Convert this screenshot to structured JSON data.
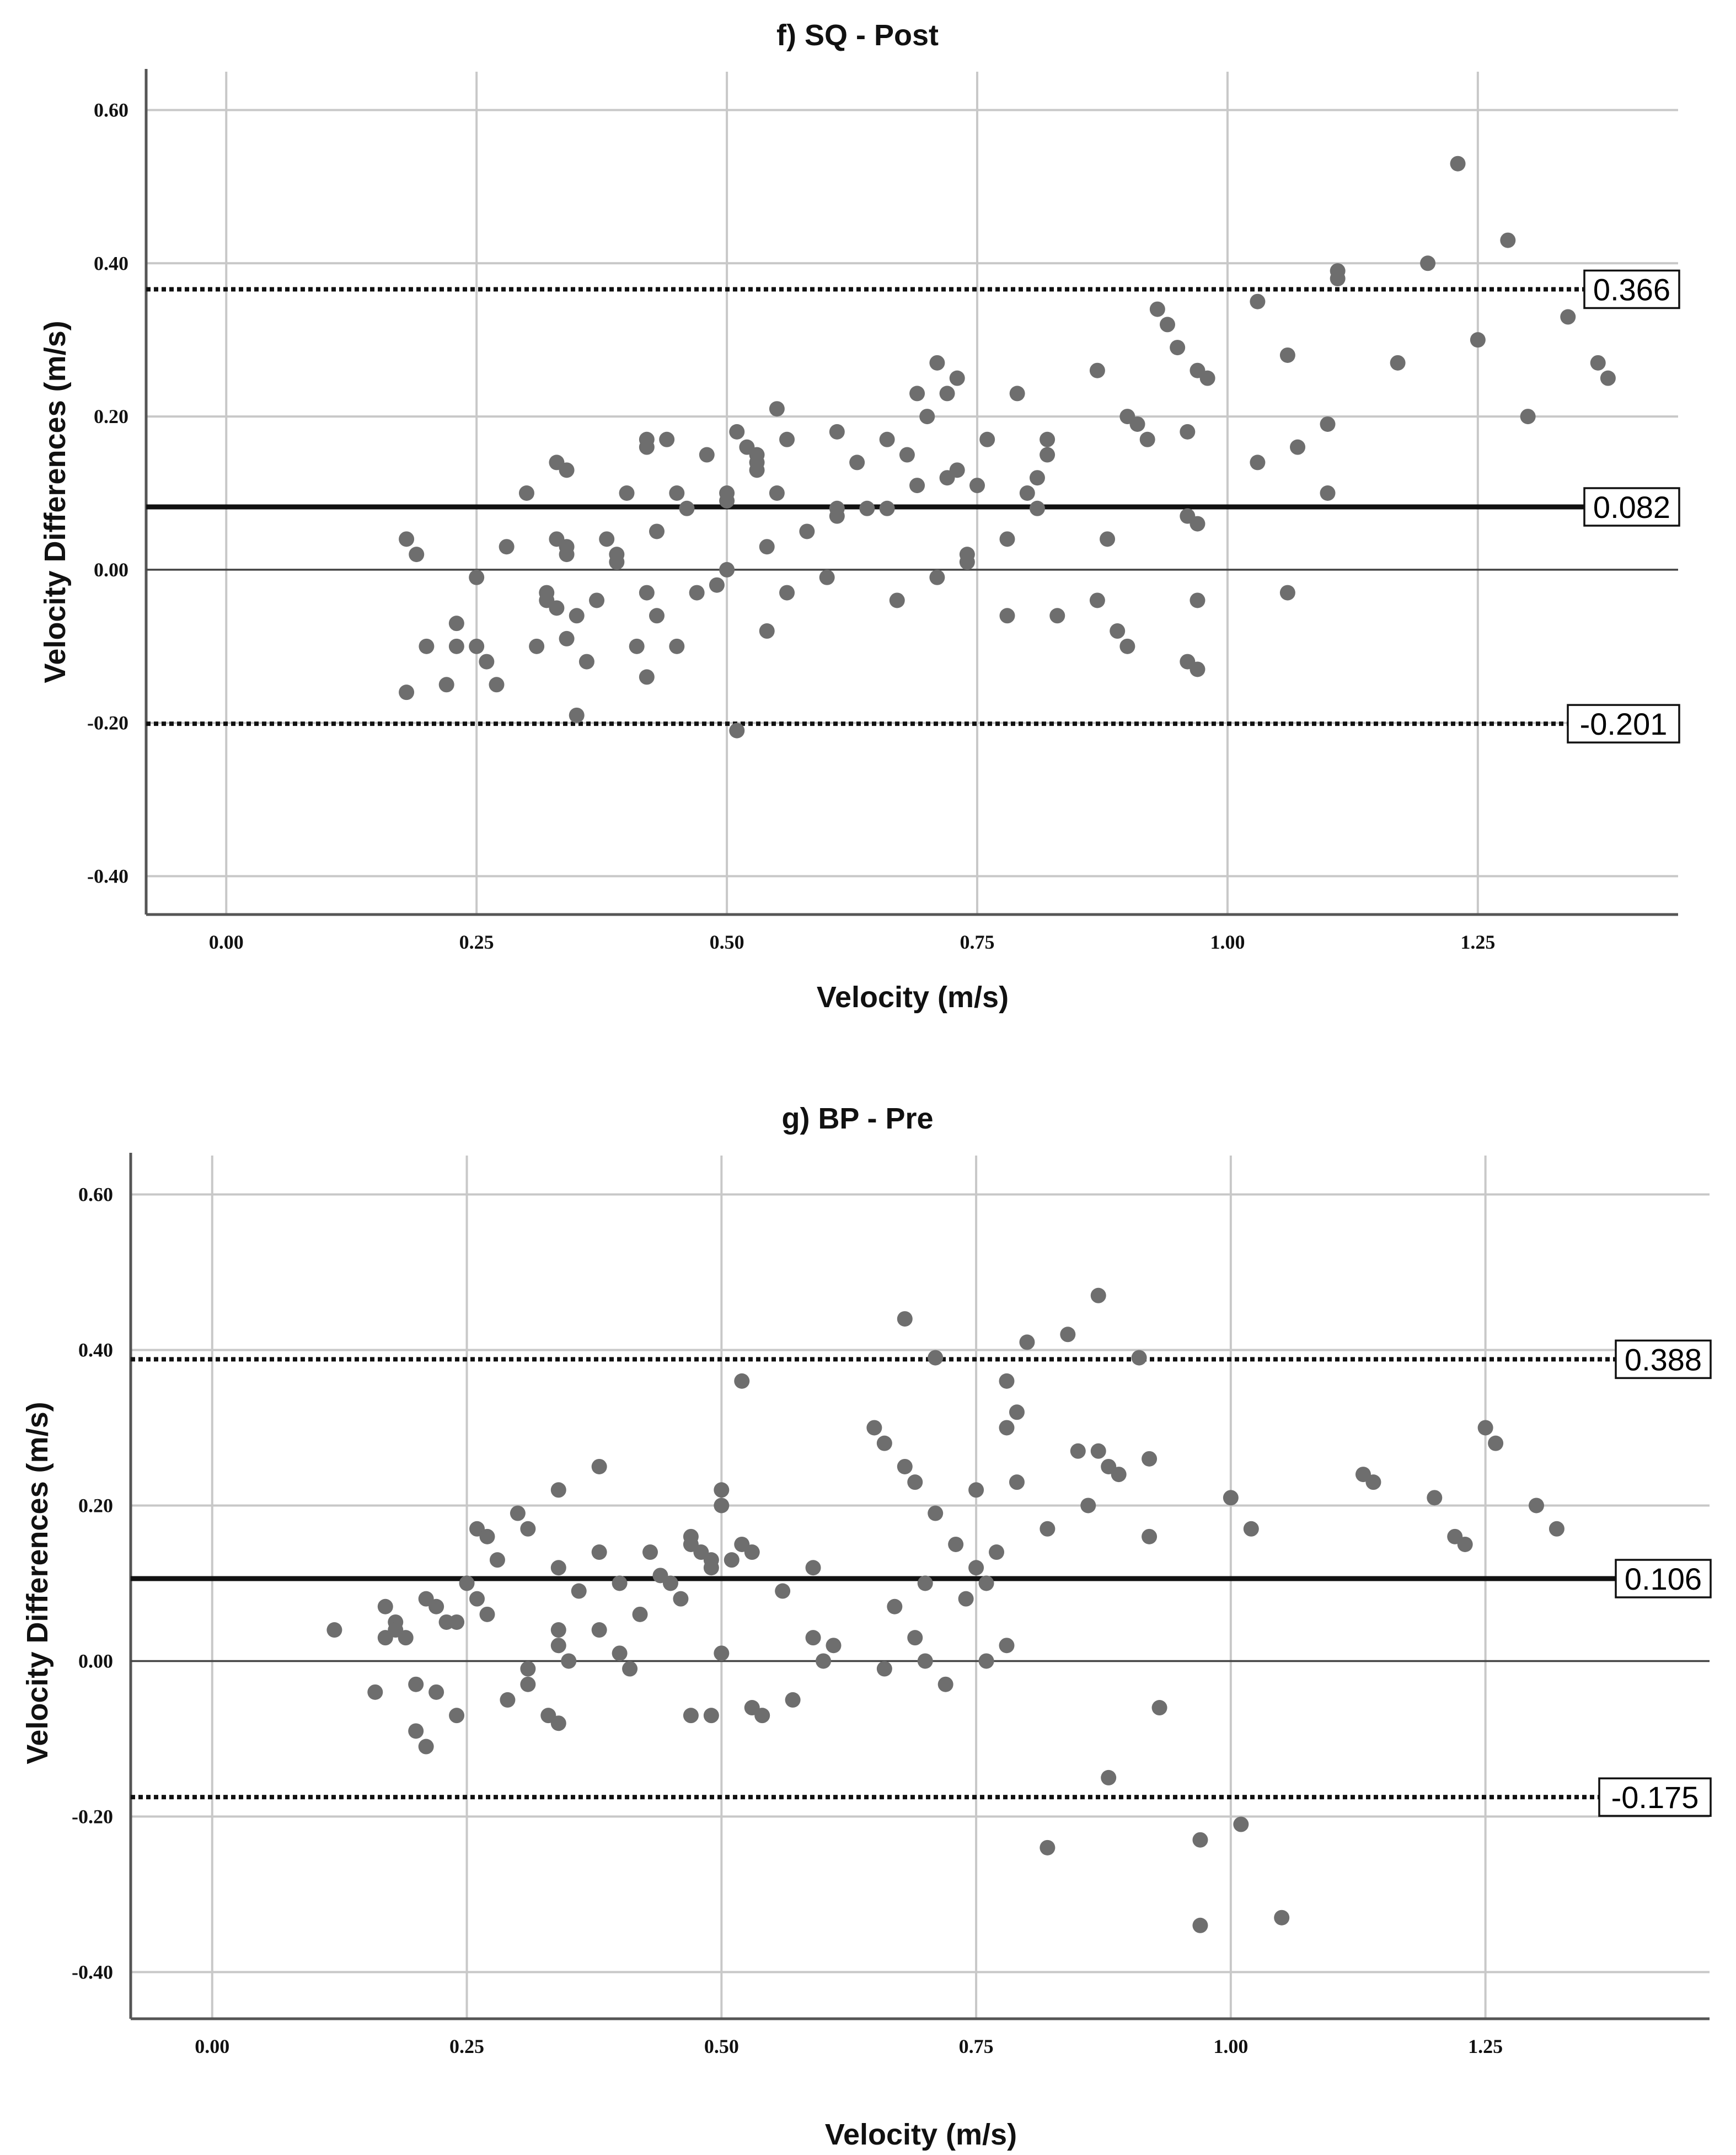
{
  "chart_data": [
    {
      "type": "scatter",
      "title": "f) SQ - Post",
      "xlabel": "Velocity (m/s)",
      "ylabel": "Velocity Differences (m/s)",
      "xlim": [
        -0.08,
        1.45
      ],
      "ylim": [
        -0.45,
        0.65
      ],
      "xticks": [
        0.0,
        0.25,
        0.5,
        0.75,
        1.0,
        1.25
      ],
      "xtick_labels": [
        "0.00",
        "0.25",
        "0.50",
        "0.75",
        "1.00",
        "1.25"
      ],
      "yticks": [
        -0.4,
        -0.2,
        0.0,
        0.2,
        0.4,
        0.6
      ],
      "ytick_labels": [
        "-0.40",
        "-0.20",
        "0.00",
        "0.20",
        "0.40",
        "0.60"
      ],
      "grid": true,
      "reference_lines": [
        {
          "kind": "upper-limit",
          "value": 0.366,
          "label": "0.366"
        },
        {
          "kind": "mean",
          "value": 0.082,
          "label": "0.082"
        },
        {
          "kind": "lower-limit",
          "value": -0.201,
          "label": "-0.201"
        }
      ],
      "points": [
        [
          0.18,
          -0.16
        ],
        [
          0.18,
          0.04
        ],
        [
          0.19,
          0.02
        ],
        [
          0.2,
          -0.1
        ],
        [
          0.22,
          -0.15
        ],
        [
          0.23,
          -0.1
        ],
        [
          0.23,
          -0.07
        ],
        [
          0.25,
          -0.1
        ],
        [
          0.25,
          -0.01
        ],
        [
          0.26,
          -0.12
        ],
        [
          0.27,
          -0.15
        ],
        [
          0.28,
          0.03
        ],
        [
          0.3,
          0.1
        ],
        [
          0.31,
          -0.1
        ],
        [
          0.32,
          -0.03
        ],
        [
          0.32,
          -0.04
        ],
        [
          0.33,
          -0.05
        ],
        [
          0.33,
          0.14
        ],
        [
          0.33,
          0.04
        ],
        [
          0.34,
          0.13
        ],
        [
          0.34,
          0.03
        ],
        [
          0.34,
          -0.09
        ],
        [
          0.34,
          0.02
        ],
        [
          0.35,
          -0.06
        ],
        [
          0.35,
          -0.19
        ],
        [
          0.36,
          -0.12
        ],
        [
          0.37,
          -0.04
        ],
        [
          0.38,
          0.04
        ],
        [
          0.39,
          0.02
        ],
        [
          0.39,
          0.01
        ],
        [
          0.4,
          0.1
        ],
        [
          0.41,
          -0.1
        ],
        [
          0.42,
          0.17
        ],
        [
          0.42,
          0.16
        ],
        [
          0.42,
          -0.03
        ],
        [
          0.42,
          -0.14
        ],
        [
          0.43,
          0.05
        ],
        [
          0.43,
          -0.06
        ],
        [
          0.44,
          0.17
        ],
        [
          0.45,
          0.1
        ],
        [
          0.45,
          -0.1
        ],
        [
          0.46,
          0.08
        ],
        [
          0.47,
          -0.03
        ],
        [
          0.48,
          0.15
        ],
        [
          0.49,
          -0.02
        ],
        [
          0.5,
          0.1
        ],
        [
          0.5,
          0.0
        ],
        [
          0.5,
          0.09
        ],
        [
          0.51,
          -0.21
        ],
        [
          0.51,
          0.18
        ],
        [
          0.52,
          0.16
        ],
        [
          0.53,
          0.15
        ],
        [
          0.53,
          0.14
        ],
        [
          0.53,
          0.13
        ],
        [
          0.54,
          0.03
        ],
        [
          0.54,
          -0.08
        ],
        [
          0.55,
          0.21
        ],
        [
          0.55,
          0.1
        ],
        [
          0.56,
          0.17
        ],
        [
          0.56,
          -0.03
        ],
        [
          0.58,
          0.05
        ],
        [
          0.6,
          -0.01
        ],
        [
          0.61,
          0.18
        ],
        [
          0.61,
          0.08
        ],
        [
          0.61,
          0.07
        ],
        [
          0.63,
          0.14
        ],
        [
          0.64,
          0.08
        ],
        [
          0.66,
          0.08
        ],
        [
          0.66,
          0.17
        ],
        [
          0.67,
          -0.04
        ],
        [
          0.68,
          0.15
        ],
        [
          0.69,
          0.23
        ],
        [
          0.69,
          0.11
        ],
        [
          0.7,
          0.2
        ],
        [
          0.71,
          -0.01
        ],
        [
          0.71,
          0.27
        ],
        [
          0.72,
          0.23
        ],
        [
          0.72,
          0.12
        ],
        [
          0.73,
          0.25
        ],
        [
          0.73,
          0.13
        ],
        [
          0.74,
          0.02
        ],
        [
          0.74,
          0.01
        ],
        [
          0.75,
          0.11
        ],
        [
          0.76,
          0.17
        ],
        [
          0.78,
          0.04
        ],
        [
          0.78,
          -0.06
        ],
        [
          0.79,
          0.23
        ],
        [
          0.8,
          0.1
        ],
        [
          0.81,
          0.12
        ],
        [
          0.81,
          0.08
        ],
        [
          0.82,
          0.17
        ],
        [
          0.82,
          0.15
        ],
        [
          0.83,
          -0.06
        ],
        [
          0.87,
          0.26
        ],
        [
          0.87,
          -0.04
        ],
        [
          0.88,
          0.04
        ],
        [
          0.89,
          -0.08
        ],
        [
          0.9,
          0.2
        ],
        [
          0.9,
          -0.1
        ],
        [
          0.91,
          0.19
        ],
        [
          0.92,
          0.17
        ],
        [
          0.93,
          0.34
        ],
        [
          0.94,
          0.32
        ],
        [
          0.95,
          0.29
        ],
        [
          0.96,
          0.18
        ],
        [
          0.96,
          -0.12
        ],
        [
          0.96,
          0.07
        ],
        [
          0.97,
          0.06
        ],
        [
          0.97,
          -0.13
        ],
        [
          0.97,
          0.26
        ],
        [
          0.97,
          -0.04
        ],
        [
          0.98,
          0.25
        ],
        [
          1.03,
          0.35
        ],
        [
          1.03,
          0.14
        ],
        [
          1.06,
          0.28
        ],
        [
          1.06,
          -0.03
        ],
        [
          1.07,
          0.16
        ],
        [
          1.1,
          0.1
        ],
        [
          1.1,
          0.19
        ],
        [
          1.11,
          0.39
        ],
        [
          1.11,
          0.38
        ],
        [
          1.17,
          0.27
        ],
        [
          1.2,
          0.4
        ],
        [
          1.23,
          0.53
        ],
        [
          1.25,
          0.3
        ],
        [
          1.28,
          0.43
        ],
        [
          1.3,
          0.2
        ],
        [
          1.34,
          0.33
        ],
        [
          1.37,
          0.27
        ],
        [
          1.38,
          0.25
        ]
      ]
    },
    {
      "type": "scatter",
      "title": "g) BP - Pre",
      "xlabel": "Velocity (m/s)",
      "ylabel": "Velocity Differences (m/s)",
      "xlim": [
        -0.08,
        1.47
      ],
      "ylim": [
        -0.46,
        0.65
      ],
      "xticks": [
        0.0,
        0.25,
        0.5,
        0.75,
        1.0,
        1.25
      ],
      "xtick_labels": [
        "0.00",
        "0.25",
        "0.50",
        "0.75",
        "1.00",
        "1.25"
      ],
      "yticks": [
        -0.4,
        -0.2,
        0.0,
        0.2,
        0.4,
        0.6
      ],
      "ytick_labels": [
        "-0.40",
        "-0.20",
        "0.00",
        "0.20",
        "0.40",
        "0.60"
      ],
      "grid": true,
      "reference_lines": [
        {
          "kind": "upper-limit",
          "value": 0.388,
          "label": "0.388"
        },
        {
          "kind": "mean",
          "value": 0.106,
          "label": "0.106"
        },
        {
          "kind": "lower-limit",
          "value": -0.175,
          "label": "-0.175"
        }
      ],
      "points": [
        [
          0.12,
          0.04
        ],
        [
          0.16,
          -0.04
        ],
        [
          0.17,
          0.07
        ],
        [
          0.17,
          0.03
        ],
        [
          0.18,
          0.05
        ],
        [
          0.18,
          0.04
        ],
        [
          0.19,
          0.03
        ],
        [
          0.2,
          -0.03
        ],
        [
          0.2,
          -0.09
        ],
        [
          0.21,
          -0.11
        ],
        [
          0.21,
          0.08
        ],
        [
          0.22,
          0.07
        ],
        [
          0.22,
          -0.04
        ],
        [
          0.23,
          0.05
        ],
        [
          0.24,
          0.05
        ],
        [
          0.24,
          -0.07
        ],
        [
          0.25,
          0.1
        ],
        [
          0.26,
          0.08
        ],
        [
          0.26,
          0.17
        ],
        [
          0.27,
          0.16
        ],
        [
          0.27,
          0.06
        ],
        [
          0.28,
          0.13
        ],
        [
          0.29,
          -0.05
        ],
        [
          0.3,
          0.19
        ],
        [
          0.31,
          0.17
        ],
        [
          0.31,
          -0.01
        ],
        [
          0.31,
          -0.03
        ],
        [
          0.33,
          -0.07
        ],
        [
          0.34,
          0.22
        ],
        [
          0.34,
          0.12
        ],
        [
          0.34,
          0.04
        ],
        [
          0.34,
          0.02
        ],
        [
          0.34,
          -0.08
        ],
        [
          0.35,
          0.0
        ],
        [
          0.36,
          0.09
        ],
        [
          0.38,
          0.25
        ],
        [
          0.38,
          0.14
        ],
        [
          0.38,
          0.04
        ],
        [
          0.4,
          0.01
        ],
        [
          0.4,
          0.1
        ],
        [
          0.41,
          -0.01
        ],
        [
          0.42,
          0.06
        ],
        [
          0.43,
          0.14
        ],
        [
          0.44,
          0.11
        ],
        [
          0.45,
          0.1
        ],
        [
          0.46,
          0.08
        ],
        [
          0.47,
          0.16
        ],
        [
          0.47,
          0.15
        ],
        [
          0.47,
          -0.07
        ],
        [
          0.48,
          0.14
        ],
        [
          0.49,
          0.13
        ],
        [
          0.49,
          0.12
        ],
        [
          0.49,
          -0.07
        ],
        [
          0.5,
          0.22
        ],
        [
          0.5,
          0.01
        ],
        [
          0.5,
          0.2
        ],
        [
          0.51,
          0.13
        ],
        [
          0.52,
          0.36
        ],
        [
          0.52,
          0.15
        ],
        [
          0.53,
          0.14
        ],
        [
          0.53,
          -0.06
        ],
        [
          0.54,
          -0.07
        ],
        [
          0.56,
          0.09
        ],
        [
          0.57,
          -0.05
        ],
        [
          0.59,
          0.12
        ],
        [
          0.59,
          0.03
        ],
        [
          0.6,
          0.0
        ],
        [
          0.61,
          0.02
        ],
        [
          0.65,
          0.3
        ],
        [
          0.66,
          0.28
        ],
        [
          0.66,
          -0.01
        ],
        [
          0.67,
          0.07
        ],
        [
          0.68,
          0.25
        ],
        [
          0.68,
          0.44
        ],
        [
          0.69,
          0.23
        ],
        [
          0.69,
          0.03
        ],
        [
          0.7,
          0.1
        ],
        [
          0.7,
          0.0
        ],
        [
          0.71,
          0.39
        ],
        [
          0.71,
          0.19
        ],
        [
          0.72,
          -0.03
        ],
        [
          0.73,
          0.15
        ],
        [
          0.74,
          0.08
        ],
        [
          0.75,
          0.22
        ],
        [
          0.75,
          0.12
        ],
        [
          0.76,
          0.1
        ],
        [
          0.76,
          0.0
        ],
        [
          0.77,
          0.14
        ],
        [
          0.78,
          0.36
        ],
        [
          0.78,
          0.3
        ],
        [
          0.78,
          0.02
        ],
        [
          0.79,
          0.23
        ],
        [
          0.79,
          0.32
        ],
        [
          0.8,
          0.41
        ],
        [
          0.82,
          0.17
        ],
        [
          0.82,
          -0.24
        ],
        [
          0.84,
          0.42
        ],
        [
          0.85,
          0.27
        ],
        [
          0.86,
          0.2
        ],
        [
          0.87,
          0.47
        ],
        [
          0.87,
          0.27
        ],
        [
          0.88,
          0.25
        ],
        [
          0.88,
          -0.15
        ],
        [
          0.89,
          0.24
        ],
        [
          0.91,
          0.39
        ],
        [
          0.92,
          0.26
        ],
        [
          0.92,
          0.16
        ],
        [
          0.93,
          -0.06
        ],
        [
          0.97,
          -0.23
        ],
        [
          0.97,
          -0.34
        ],
        [
          1.0,
          0.21
        ],
        [
          1.01,
          -0.21
        ],
        [
          1.02,
          0.17
        ],
        [
          1.05,
          -0.33
        ],
        [
          1.13,
          0.24
        ],
        [
          1.14,
          0.23
        ],
        [
          1.2,
          0.21
        ],
        [
          1.22,
          0.16
        ],
        [
          1.23,
          0.15
        ],
        [
          1.25,
          0.3
        ],
        [
          1.26,
          0.28
        ],
        [
          1.3,
          0.2
        ],
        [
          1.32,
          0.17
        ]
      ]
    }
  ]
}
